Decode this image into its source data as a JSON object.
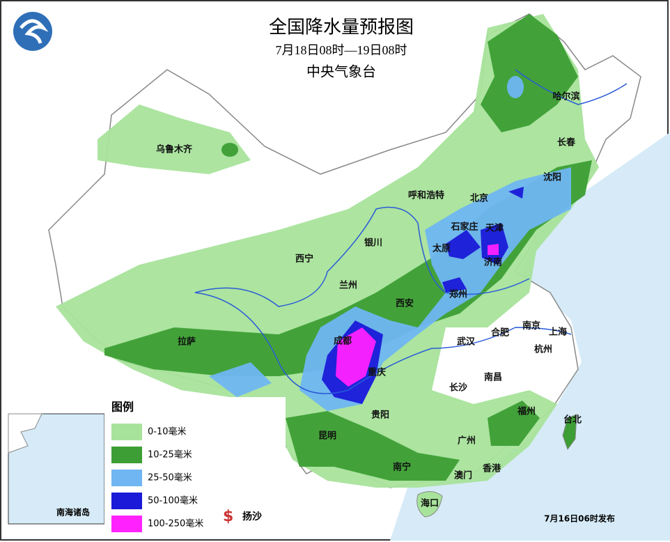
{
  "header": {
    "title": "全国降水量预报图",
    "subtitle": "7月18日08时—19日08时",
    "agency": "中央气象台"
  },
  "cities": [
    "乌鲁木齐",
    "哈尔滨",
    "长春",
    "沈阳",
    "呼和浩特",
    "北京",
    "石家庄",
    "天津",
    "太原",
    "济南",
    "西宁",
    "银川",
    "兰州",
    "郑州",
    "西安",
    "拉萨",
    "成都",
    "武汉",
    "合肥",
    "南京",
    "上海",
    "杭州",
    "重庆",
    "长沙",
    "南昌",
    "贵阳",
    "福州",
    "台北",
    "昆明",
    "广州",
    "南宁",
    "香港",
    "澳门",
    "海口"
  ],
  "legend": {
    "title": "图例",
    "items": [
      {
        "label": "0-10毫米",
        "color": "#a8e39b"
      },
      {
        "label": "10-25毫米",
        "color": "#3c9e34"
      },
      {
        "label": "25-50毫米",
        "color": "#6fb6f2"
      },
      {
        "label": "50-100毫米",
        "color": "#1a1ad8"
      },
      {
        "label": "100-250毫米",
        "color": "#ff22ff"
      }
    ],
    "sand": "扬沙"
  },
  "inset": {
    "label": "南海诸岛"
  },
  "footer": "7月16日06时发布"
}
